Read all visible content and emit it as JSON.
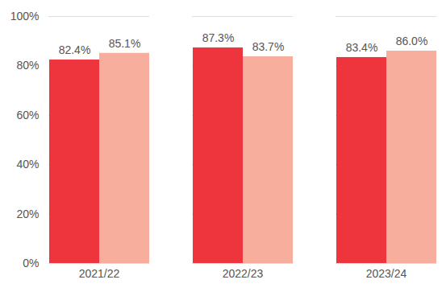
{
  "chart_data": {
    "type": "bar",
    "categories": [
      "2021/22",
      "2022/23",
      "2023/24"
    ],
    "series": [
      {
        "color": "#ee353e",
        "values": [
          82.4,
          87.3,
          83.4
        ],
        "value_labels": [
          "82.4%",
          "87.3%",
          "83.4%"
        ]
      },
      {
        "color": "#f7ae9c",
        "values": [
          85.1,
          83.7,
          86.0
        ],
        "value_labels": [
          "85.1%",
          "83.7%",
          "86.0%"
        ]
      }
    ],
    "ylim": [
      0,
      100
    ],
    "yticks": [
      {
        "value": 0,
        "label": "0%"
      },
      {
        "value": 20,
        "label": "20%"
      },
      {
        "value": 40,
        "label": "40%"
      },
      {
        "value": 60,
        "label": "60%"
      },
      {
        "value": 80,
        "label": "80%"
      },
      {
        "value": 100,
        "label": "100%"
      }
    ],
    "grid": true,
    "data_labels": true
  }
}
